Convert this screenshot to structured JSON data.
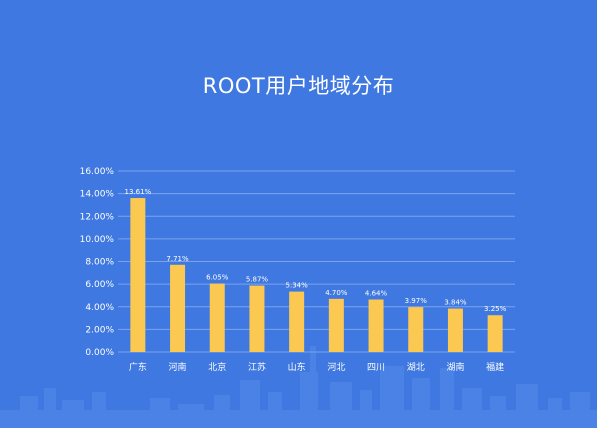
{
  "title": "ROOT用户地域分布",
  "colors": {
    "background": "#3f78e0",
    "bar": "#fbc851",
    "grid": "#7aa3ec",
    "text": "#ffffff"
  },
  "chart_data": {
    "type": "bar",
    "title": "ROOT用户地域分布",
    "categories": [
      "广东",
      "河南",
      "北京",
      "江苏",
      "山东",
      "河北",
      "四川",
      "湖北",
      "湖南",
      "福建"
    ],
    "values": [
      13.61,
      7.71,
      6.05,
      5.87,
      5.34,
      4.7,
      4.64,
      3.97,
      3.84,
      3.25
    ],
    "data_labels": [
      "13.61%",
      "7.71%",
      "6.05%",
      "5.87%",
      "5.34%",
      "4.70%",
      "4.64%",
      "3.97%",
      "3.84%",
      "3.25%"
    ],
    "y_ticks": [
      "0.00%",
      "2.00%",
      "4.00%",
      "6.00%",
      "8.00%",
      "10.00%",
      "12.00%",
      "14.00%",
      "16.00%"
    ],
    "ylim": [
      0,
      16
    ],
    "grid": true,
    "legend": "none"
  }
}
